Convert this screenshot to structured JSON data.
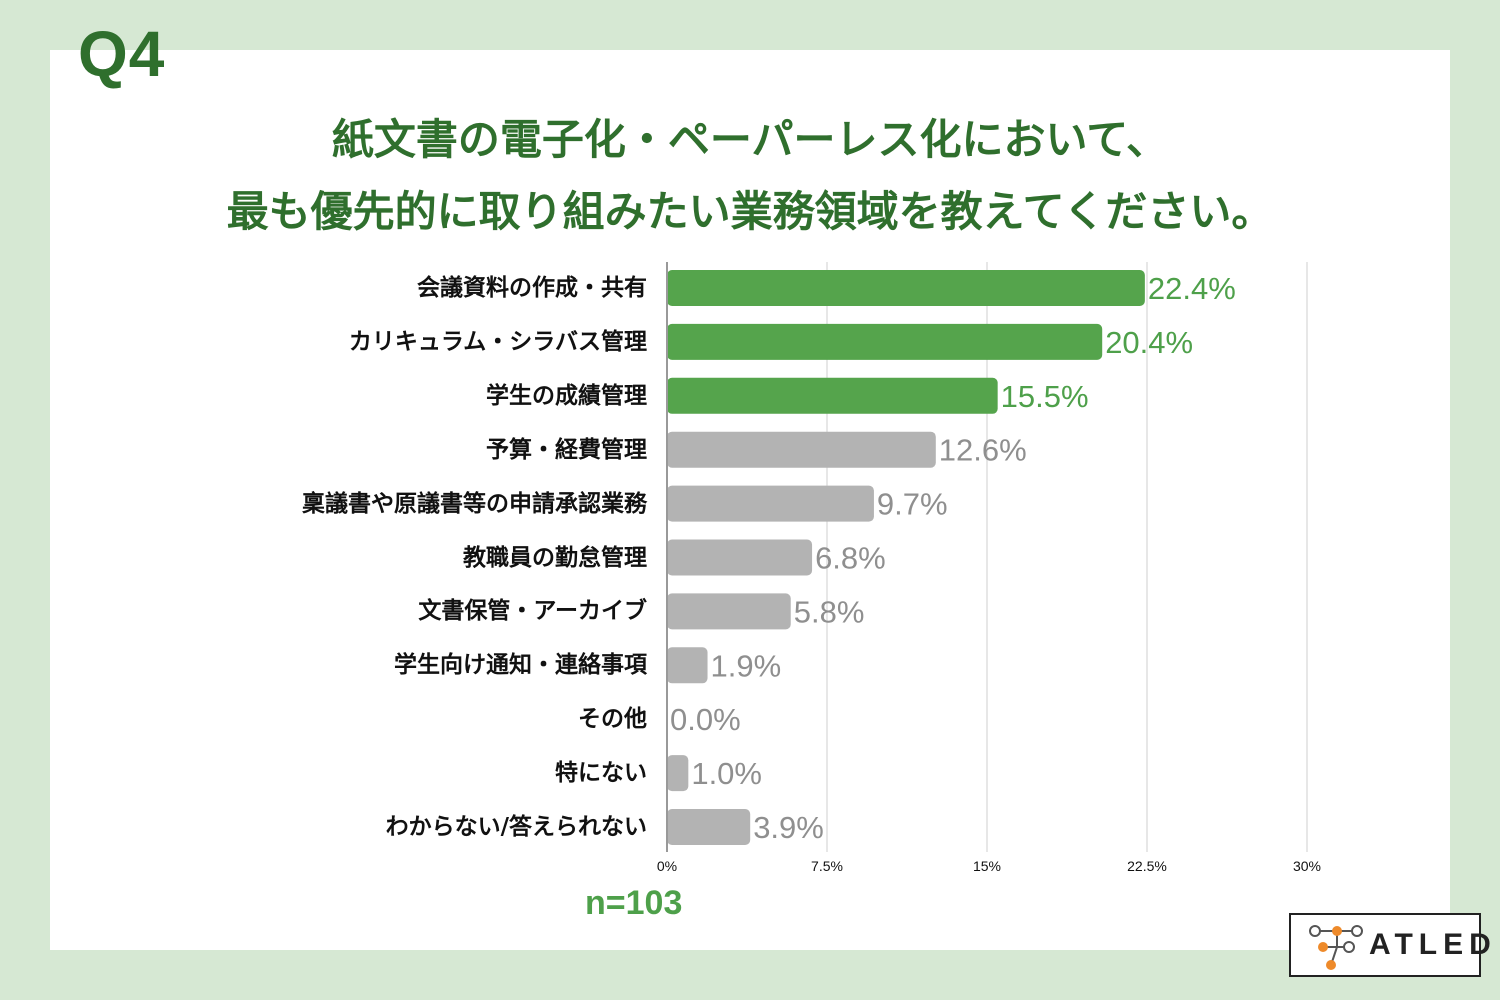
{
  "header": {
    "question": "Q4",
    "title_line1": "紙文書の電子化・ペーパーレス化において、",
    "title_line2": "最も優先的に取り組みたい業務領域を教えてください。"
  },
  "chart_data": {
    "type": "bar",
    "orientation": "horizontal",
    "categories": [
      "会議資料の作成・共有",
      "カリキュラム・シラバス管理",
      "学生の成績管理",
      "予算・経費管理",
      "稟議書や原議書等の申請承認業務",
      "教職員の勤怠管理",
      "文書保管・アーカイブ",
      "学生向け通知・連絡事項",
      "その他",
      "特にない",
      "わからない/答えられない"
    ],
    "values": [
      22.4,
      20.4,
      15.5,
      12.6,
      9.7,
      6.8,
      5.8,
      1.9,
      0.0,
      1.0,
      3.9
    ],
    "value_labels": [
      "22.4%",
      "20.4%",
      "15.5%",
      "12.6%",
      "9.7%",
      "6.8%",
      "5.8%",
      "1.9%",
      "0.0%",
      "1.0%",
      "3.9%"
    ],
    "highlight_count": 3,
    "xlim": [
      0,
      30
    ],
    "x_ticks": [
      0,
      7.5,
      15,
      22.5,
      30
    ],
    "x_tick_labels": [
      "0%",
      "7.5%",
      "15%",
      "22.5%",
      "30%"
    ],
    "grid": true,
    "colors": {
      "highlight": "#55a44c",
      "normal": "#b3b3b3",
      "highlight_label": "#4ea04a",
      "normal_label": "#8f8f8f"
    }
  },
  "footer": {
    "sample_size": "n=103"
  },
  "logo": {
    "text": "ATLED"
  },
  "colors": {
    "background": "#d6e8d3",
    "title": "#2f6f2d",
    "accent": "#4ea04a"
  }
}
